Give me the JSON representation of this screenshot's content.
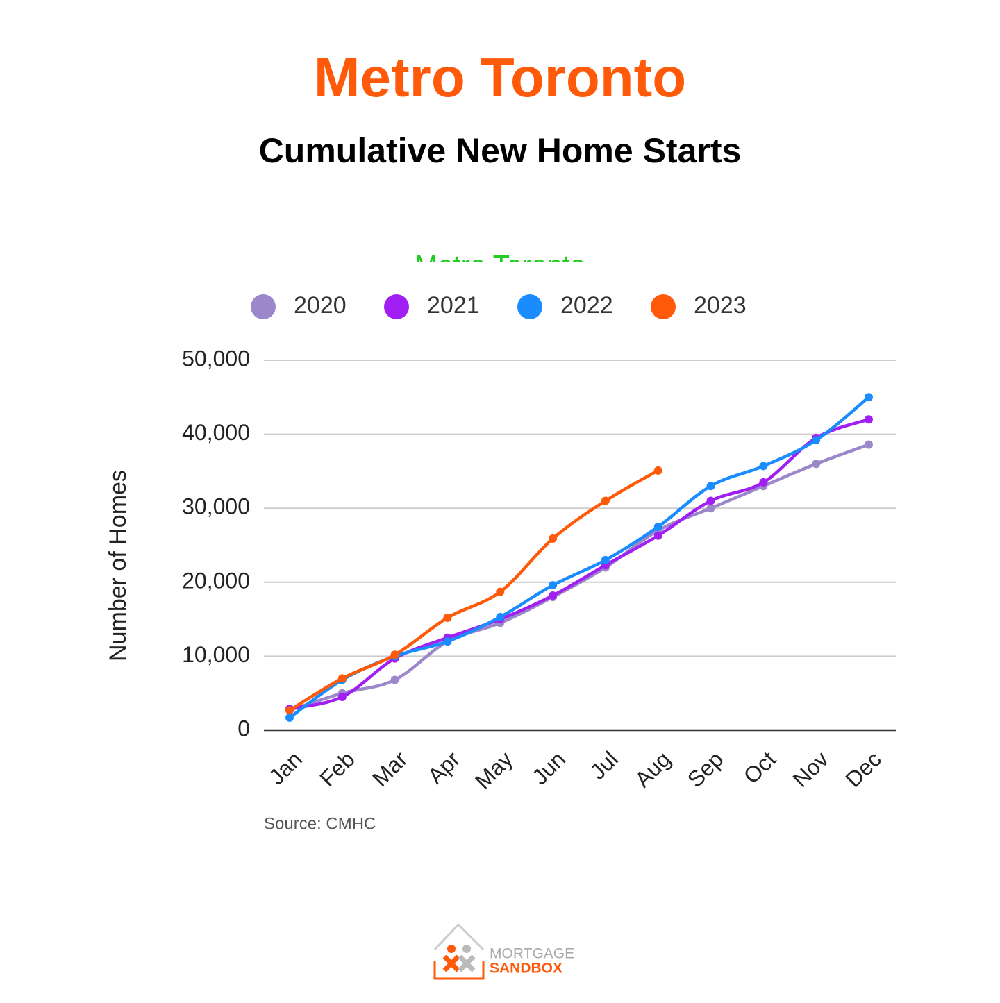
{
  "chart_data": {
    "type": "line",
    "title": "Metro Toronto",
    "subtitle": "Cumulative New Home Starts",
    "inner_title": "Metro Toronto",
    "y_label": "Number of Homes",
    "source": "Source: CMHC",
    "logo": {
      "line1": "MORTGAGE",
      "line2": "SANDBOX"
    },
    "categories": [
      "Jan",
      "Feb",
      "Mar",
      "Apr",
      "May",
      "Jun",
      "Jul",
      "Aug",
      "Sep",
      "Oct",
      "Nov",
      "Dec"
    ],
    "series": [
      {
        "name": "2020",
        "color": "#9b87c9",
        "values": [
          2700,
          5000,
          6800,
          12000,
          14500,
          18000,
          22000,
          27000,
          30000,
          33000,
          36000,
          38600
        ]
      },
      {
        "name": "2021",
        "color": "#a11ff2",
        "values": [
          2900,
          4500,
          9700,
          12500,
          15000,
          18200,
          22300,
          26300,
          31000,
          33500,
          39500,
          42000
        ]
      },
      {
        "name": "2022",
        "color": "#1a8cff",
        "values": [
          1700,
          6800,
          10000,
          12000,
          15300,
          19600,
          23000,
          27500,
          33000,
          35700,
          39200,
          45000
        ]
      },
      {
        "name": "2023",
        "color": "#ff5a0a",
        "values": [
          2700,
          7000,
          10200,
          15200,
          18700,
          25900,
          31000,
          35100,
          null,
          null,
          null,
          null
        ]
      }
    ],
    "ylim": [
      0,
      50000
    ],
    "yticks": [
      {
        "value": 0,
        "label": "0"
      },
      {
        "value": 10000,
        "label": "10,000"
      },
      {
        "value": 20000,
        "label": "20,000"
      },
      {
        "value": 30000,
        "label": "30,000"
      },
      {
        "value": 40000,
        "label": "40,000"
      },
      {
        "value": 50000,
        "label": "50,000"
      }
    ],
    "grid": true,
    "legend": "top"
  }
}
